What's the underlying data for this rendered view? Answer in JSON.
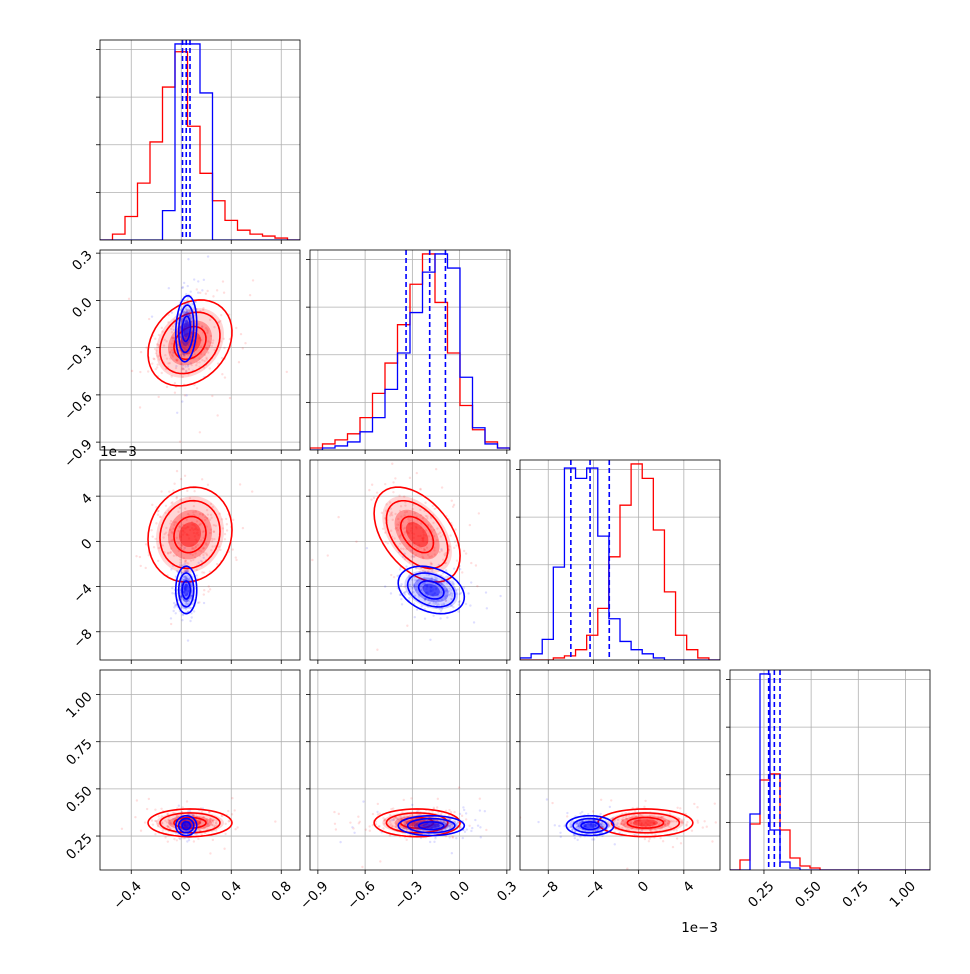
{
  "colors": {
    "red": "#ff0000",
    "blue": "#0000ff",
    "grid": "#b0b0b0"
  },
  "offsets": {
    "var3": "1e−3"
  },
  "variables": [
    {
      "range": [
        -0.65,
        0.95
      ],
      "ticks": [
        -0.4,
        0.0,
        0.4,
        0.8
      ],
      "tick_labels": [
        "−0.4",
        "0.0",
        "0.4",
        "0.8"
      ]
    },
    {
      "range": [
        -0.95,
        0.32
      ],
      "ticks": [
        -0.9,
        -0.6,
        -0.3,
        0.0,
        0.3
      ],
      "tick_labels": [
        "−0.9",
        "−0.6",
        "−0.3",
        "0.0",
        "0.3"
      ]
    },
    {
      "range": [
        -10.5,
        7.2
      ],
      "ticks": [
        -8,
        -4,
        0,
        4
      ],
      "tick_labels": [
        "−8",
        "−4",
        "0",
        "4"
      ]
    },
    {
      "range": [
        0.07,
        1.13
      ],
      "ticks": [
        0.25,
        0.5,
        0.75,
        1.0
      ],
      "tick_labels": [
        "0.25",
        "0.50",
        "0.75",
        "1.00"
      ]
    }
  ],
  "chart_data": {
    "type": "scatter",
    "chart_kind": "corner",
    "grid": true,
    "series": [
      {
        "name": "",
        "color": "#ff0000",
        "mean": [
          0.07,
          -0.27,
          0.6,
          0.32
        ],
        "sd": [
          0.16,
          0.13,
          2.0,
          0.035
        ],
        "quantiles": null,
        "hist": [
          [
            0.0,
            0.03,
            0.12,
            0.29,
            0.5,
            0.78,
            0.96,
            0.58,
            0.34,
            0.2,
            0.1,
            0.05,
            0.03,
            0.02,
            0.01,
            0.0
          ],
          [
            0.01,
            0.03,
            0.05,
            0.08,
            0.16,
            0.28,
            0.43,
            0.62,
            0.82,
            0.97,
            0.73,
            0.48,
            0.22,
            0.1,
            0.04,
            0.01
          ],
          [
            0.0,
            0.0,
            0.0,
            0.01,
            0.02,
            0.05,
            0.12,
            0.25,
            0.5,
            0.75,
            0.95,
            0.88,
            0.63,
            0.33,
            0.12,
            0.05,
            0.01,
            0.0
          ],
          [
            0.0,
            0.05,
            0.23,
            0.45,
            0.48,
            0.2,
            0.06,
            0.02,
            0.01,
            0.0,
            0.0,
            0.0,
            0.0,
            0.0,
            0.0,
            0.0,
            0.0,
            0.0,
            0.0,
            0.0
          ]
        ]
      },
      {
        "name": "",
        "color": "#0000ff",
        "mean": [
          0.04,
          -0.18,
          -4.3,
          0.305
        ],
        "sd": [
          0.04,
          0.1,
          1.0,
          0.025
        ],
        "quantiles": [
          [
            0.01,
            0.04,
            0.07
          ],
          [
            -0.34,
            -0.19,
            -0.09
          ],
          [
            -6.0,
            -4.3,
            -2.6
          ],
          [
            0.275,
            0.305,
            0.335
          ]
        ],
        "hist": [
          [
            0.0,
            0.0,
            0.0,
            0.0,
            0.0,
            0.15,
            1.0,
            1.0,
            0.75,
            0.0,
            0.0,
            0.0,
            0.0,
            0.0,
            0.0,
            0.0
          ],
          [
            0.0,
            0.01,
            0.02,
            0.04,
            0.09,
            0.16,
            0.3,
            0.48,
            0.68,
            0.88,
            0.97,
            0.9,
            0.36,
            0.11,
            0.03,
            0.01
          ],
          [
            0.01,
            0.03,
            0.1,
            0.45,
            0.93,
            0.88,
            0.93,
            0.6,
            0.2,
            0.09,
            0.05,
            0.03,
            0.01,
            0.0,
            0.0,
            0.0,
            0.0,
            0.0
          ],
          [
            0.0,
            0.0,
            0.28,
            0.98,
            0.2,
            0.04,
            0.01,
            0.0,
            0.0,
            0.0,
            0.0,
            0.0,
            0.0,
            0.0,
            0.0,
            0.0,
            0.0,
            0.0,
            0.0,
            0.0
          ]
        ]
      }
    ],
    "correlations": {
      "1-0": [
        0.25,
        0.15
      ],
      "2-0": [
        0.1,
        0.0
      ],
      "2-1": [
        -0.45,
        -0.3
      ],
      "3-0": [
        0.0,
        0.0
      ],
      "3-1": [
        0.0,
        0.0
      ],
      "3-2": [
        0.0,
        0.0
      ]
    }
  }
}
